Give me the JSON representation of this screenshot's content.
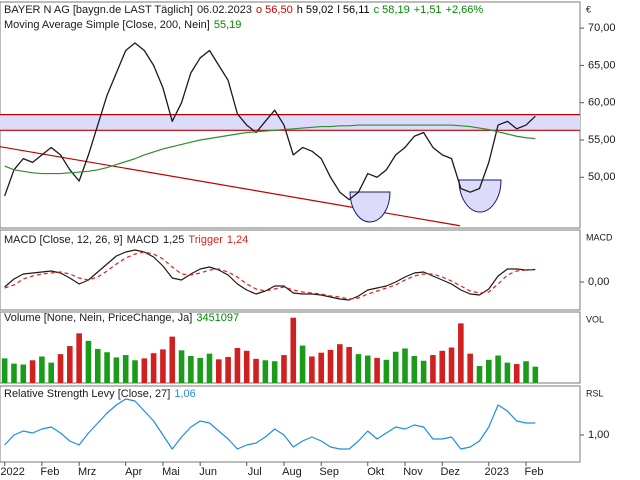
{
  "chart_data": [
    {
      "type": "line",
      "date": "06.02.2023",
      "quote_labels": [
        "o 56,50",
        "h 59,02",
        "l 56,11",
        "c 58,19",
        "+1,51",
        "+2,66%"
      ],
      "quote_colors": [
        "#d00000",
        "#000000",
        "#000000",
        "#008a00",
        "#008a00",
        "#008a00"
      ],
      "axis_label": "€",
      "categories": [
        "2022",
        null,
        null,
        null,
        "Feb",
        null,
        null,
        null,
        "Mrz",
        null,
        null,
        null,
        null,
        "Apr",
        null,
        null,
        null,
        "Mai",
        null,
        null,
        null,
        "Jun",
        null,
        null,
        null,
        null,
        "Jul",
        null,
        null,
        null,
        "Aug",
        null,
        null,
        null,
        "Sep",
        null,
        null,
        null,
        null,
        "Okt",
        null,
        null,
        null,
        "Nov",
        null,
        null,
        null,
        "Dez",
        null,
        null,
        null,
        null,
        "2023",
        null,
        null,
        null,
        "Feb",
        null
      ],
      "series": [
        {
          "name": "BAYER N AG [baygn.de LAST Täglich]",
          "color": "#1a1a1a",
          "values": [
            47.5,
            51,
            52.5,
            52,
            53,
            54,
            53,
            51,
            49.5,
            53,
            57,
            61,
            64,
            67,
            68,
            67,
            65,
            62,
            57.5,
            60,
            64,
            66,
            67,
            65,
            63,
            58.5,
            57,
            56,
            57.5,
            59,
            57,
            53,
            54,
            53.5,
            52.5,
            50,
            48,
            47,
            48,
            50.5,
            50,
            51,
            53,
            54,
            55.5,
            56,
            54,
            53,
            52.5,
            48.5,
            48,
            48.5,
            52,
            57,
            57.5,
            56.5,
            57,
            58.19
          ]
        },
        {
          "name": "Moving Average Simple [Close, 200, Nein]",
          "color": "#2e8b2e",
          "label_color": "#008a00",
          "last_label": "55,19",
          "values": [
            51.5,
            51,
            50.8,
            50.6,
            50.5,
            50.5,
            50.5,
            50.6,
            50.7,
            50.8,
            51,
            51.3,
            51.7,
            52.1,
            52.5,
            53,
            53.4,
            53.8,
            54.1,
            54.4,
            54.7,
            55,
            55.2,
            55.4,
            55.6,
            55.8,
            56,
            56.1,
            56.2,
            56.3,
            56.4,
            56.5,
            56.6,
            56.7,
            56.8,
            56.8,
            56.9,
            56.9,
            57,
            57,
            57,
            57,
            57,
            57,
            57,
            57,
            57,
            57,
            57,
            56.9,
            56.8,
            56.6,
            56.4,
            56.1,
            55.8,
            55.5,
            55.3,
            55.19
          ]
        }
      ],
      "levels": [
        56.3,
        58.4
      ],
      "level_color": "#c00000",
      "band_color": "#dcdcfa",
      "trendline": [
        54.1,
        43.5
      ],
      "ylim": [
        43.2,
        73.5
      ],
      "yticks": [
        {
          "value": 50,
          "label": "50,00"
        },
        {
          "value": 55,
          "label": "55,00"
        },
        {
          "value": 60,
          "label": "60,00"
        },
        {
          "value": 65,
          "label": "65,00"
        },
        {
          "value": 70,
          "label": "70,00"
        }
      ]
    },
    {
      "type": "line",
      "title": "MACD [Close, 12, 26, 9]",
      "axis_label": "MACD",
      "series": [
        {
          "name": "MACD",
          "color": "#1a1a1a",
          "last_label": "1,25",
          "values": [
            -0.5,
            0.3,
            0.8,
            0.9,
            1,
            1.1,
            0.9,
            0.4,
            -0.2,
            0.2,
            1,
            1.8,
            2.6,
            3,
            3.2,
            3,
            2.5,
            1.6,
            0.4,
            0.2,
            0.8,
            1.3,
            1.5,
            1.2,
            0.7,
            -0.2,
            -0.8,
            -1.2,
            -0.9,
            -0.4,
            -0.4,
            -1.1,
            -1.2,
            -1.2,
            -1.3,
            -1.5,
            -1.7,
            -1.8,
            -1.4,
            -0.8,
            -0.6,
            -0.4,
            0,
            0.5,
            0.9,
            1,
            0.6,
            0.2,
            -0.2,
            -0.8,
            -1.2,
            -1.3,
            -0.7,
            0.6,
            1.3,
            1.3,
            1.2,
            1.25
          ]
        },
        {
          "name": "Trigger",
          "color": "#e02020",
          "dashed": true,
          "last_label": "1,24",
          "values": [
            -0.6,
            -0.3,
            0.3,
            0.6,
            0.8,
            0.9,
            1,
            0.8,
            0.4,
            0.2,
            0.5,
            1.1,
            1.8,
            2.4,
            2.8,
            3,
            2.8,
            2.3,
            1.5,
            0.8,
            0.7,
            0.9,
            1.2,
            1.3,
            1,
            0.5,
            -0.2,
            -0.7,
            -0.9,
            -0.7,
            -0.5,
            -0.8,
            -1,
            -1.1,
            -1.2,
            -1.4,
            -1.5,
            -1.7,
            -1.6,
            -1.2,
            -0.9,
            -0.6,
            -0.3,
            0.2,
            0.6,
            0.8,
            0.8,
            0.5,
            0.1,
            -0.4,
            -0.9,
            -1.1,
            -1,
            -0.2,
            0.7,
            1.1,
            1.2,
            1.24
          ]
        }
      ],
      "ylim": [
        -2.8,
        5.2
      ],
      "yticks": [
        {
          "value": 0,
          "label": "0,00"
        }
      ]
    },
    {
      "type": "bar",
      "title": "Volume [None, Nein, PriceChange, Ja]",
      "axis_label": "VOL",
      "up_color": "#1a9c1a",
      "down_color": "#d02020",
      "series": [
        {
          "label_color": "#008a00",
          "values": [
            5200000,
            4100000,
            3900000,
            4800000,
            5600000,
            4300000,
            6100000,
            7800000,
            10500000,
            8900000,
            7200000,
            6500000,
            5400000,
            5900000,
            4800000,
            5200000,
            6300000,
            7100000,
            9800000,
            6900000,
            5700000,
            5300000,
            6200000,
            5000000,
            5500000,
            7400000,
            6800000,
            5100000,
            4800000,
            4600000,
            5900000,
            13800000,
            7900000,
            5600000,
            6400000,
            7000000,
            8200000,
            7600000,
            6100000,
            5800000,
            5300000,
            4900000,
            6600000,
            7300000,
            5700000,
            4700000,
            5900000,
            6800000,
            7500000,
            12600000,
            6200000,
            3600000,
            4900000,
            5800000,
            4300000,
            4000000,
            4600000,
            3451097
          ]
        }
      ],
      "ylim": [
        0,
        15000000
      ]
    },
    {
      "type": "line",
      "title": "Relative Strength Levy [Close, 27]",
      "axis_label": "RSL",
      "series": [
        {
          "color": "#1e8fe0",
          "last_label": "1,06",
          "values": [
            0.95,
            1,
            1.02,
            1.01,
            1.03,
            1.04,
            1.01,
            0.97,
            0.95,
            1.01,
            1.06,
            1.11,
            1.15,
            1.18,
            1.17,
            1.12,
            1.07,
            1,
            0.93,
            0.99,
            1.04,
            1.07,
            1.06,
            1.02,
            0.98,
            0.93,
            0.95,
            0.96,
            0.99,
            1.03,
            1,
            0.94,
            0.97,
            0.99,
            0.97,
            0.94,
            0.93,
            0.93,
            0.97,
            1.02,
            0.98,
            1.01,
            1.04,
            1.03,
            1.05,
            1.04,
            0.98,
            0.98,
            0.99,
            0.93,
            0.94,
            0.97,
            1.04,
            1.15,
            1.12,
            1.07,
            1.06,
            1.06
          ]
        }
      ],
      "ylim": [
        0.865,
        1.245
      ],
      "yticks": [
        {
          "value": 1,
          "label": "1,00"
        }
      ]
    }
  ]
}
